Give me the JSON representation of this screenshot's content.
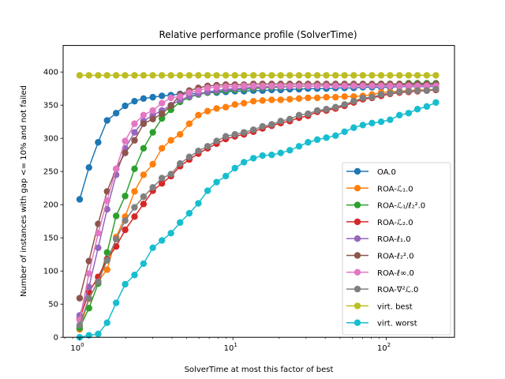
{
  "chart_data": {
    "type": "line",
    "title": "Relative performance profile (SolverTime)",
    "xlabel": "SolverTime at most this factor of best",
    "ylabel": "Number of instances with gap <= 10% and not failed",
    "xscale": "log",
    "xlim": [
      0.78,
      279
    ],
    "ylim": [
      0,
      440
    ],
    "grid": false,
    "legend_position": "lower-right",
    "xticks": [
      {
        "value": 1,
        "base": "10",
        "exp": "0"
      },
      {
        "value": 10,
        "base": "10",
        "exp": "1"
      },
      {
        "value": 100,
        "base": "10",
        "exp": "2"
      }
    ],
    "yticks": [
      0,
      50,
      100,
      150,
      200,
      250,
      300,
      350,
      400
    ],
    "x": [
      1.0,
      1.15,
      1.32,
      1.51,
      1.73,
      1.98,
      2.28,
      2.61,
      3.0,
      3.44,
      3.94,
      4.52,
      5.19,
      5.95,
      6.83,
      7.83,
      8.98,
      10.3,
      11.8,
      13.6,
      15.6,
      17.9,
      20.5,
      23.5,
      27.0,
      30.9,
      35.5,
      40.7,
      46.7,
      53.5,
      61.4,
      70.4,
      80.8,
      92.7,
      106,
      122,
      140,
      160,
      184,
      211
    ],
    "series": [
      {
        "name": "OA.0",
        "color": "#1f77b4",
        "values": [
          208,
          256,
          294,
          327,
          338,
          349,
          356,
          360,
          362,
          364,
          365,
          367,
          367,
          368,
          369,
          369,
          370,
          371,
          371,
          372,
          372,
          373,
          373,
          374,
          374,
          375,
          375,
          375,
          376,
          376,
          376,
          377,
          377,
          377,
          377,
          378,
          378,
          378,
          378,
          378
        ]
      },
      {
        "name": "ROA-ℒ₁.0",
        "color": "#ff7f0e",
        "values": [
          12,
          58,
          85,
          102,
          151,
          182,
          220,
          245,
          261,
          285,
          297,
          306,
          322,
          335,
          341,
          345,
          347,
          351,
          353,
          356,
          357,
          358,
          358,
          359,
          360,
          361,
          361,
          362,
          362,
          363,
          363,
          364,
          366,
          369,
          370,
          371,
          372,
          373,
          373,
          374
        ]
      },
      {
        "name": "ROA-ℒ₁/ℓ₂².0",
        "color": "#2ca02c",
        "values": [
          14,
          44,
          81,
          128,
          183,
          213,
          254,
          285,
          309,
          330,
          343,
          355,
          362,
          366,
          369,
          370,
          372,
          373,
          374,
          375,
          376,
          377,
          377,
          378,
          378,
          379,
          379,
          380,
          380,
          380,
          381,
          381,
          381,
          382,
          382,
          382,
          383,
          383,
          383,
          383
        ]
      },
      {
        "name": "ROA-ℒ₂.0",
        "color": "#d62728",
        "values": [
          28,
          68,
          91,
          118,
          137,
          162,
          182,
          201,
          221,
          232,
          243,
          258,
          268,
          277,
          285,
          292,
          299,
          303,
          306,
          310,
          315,
          319,
          323,
          326,
          331,
          334,
          340,
          342,
          345,
          349,
          354,
          359,
          361,
          364,
          367,
          369,
          370,
          371,
          372,
          373
        ]
      },
      {
        "name": "ROA-ℓ₁.0",
        "color": "#9467bd",
        "values": [
          33,
          76,
          135,
          193,
          245,
          285,
          309,
          326,
          335,
          342,
          350,
          358,
          363,
          367,
          370,
          372,
          374,
          375,
          376,
          377,
          377,
          378,
          378,
          378,
          379,
          379,
          379,
          379,
          380,
          380,
          380,
          380,
          380,
          380,
          380,
          380,
          380,
          380,
          380,
          380
        ]
      },
      {
        "name": "ROA-ℓ₂².0",
        "color": "#8c564b",
        "values": [
          59,
          115,
          171,
          220,
          254,
          278,
          297,
          322,
          329,
          337,
          349,
          366,
          372,
          376,
          379,
          380,
          381,
          381,
          381,
          382,
          382,
          382,
          382,
          382,
          382,
          382,
          382,
          382,
          382,
          382,
          382,
          382,
          382,
          382,
          382,
          382,
          382,
          382,
          382,
          382
        ]
      },
      {
        "name": "ROA-ℓ∞.0",
        "color": "#e377c2",
        "values": [
          26,
          96,
          157,
          206,
          254,
          296,
          322,
          335,
          342,
          353,
          361,
          363,
          369,
          372,
          376,
          377,
          378,
          378,
          379,
          379,
          379,
          379,
          379,
          379,
          379,
          379,
          379,
          379,
          379,
          379,
          379,
          379,
          379,
          379,
          379,
          379,
          379,
          379,
          379,
          379
        ]
      },
      {
        "name": "ROA-∇²ℒ.0",
        "color": "#7f7f7f",
        "values": [
          18,
          59,
          84,
          116,
          148,
          176,
          196,
          212,
          226,
          240,
          246,
          262,
          272,
          281,
          288,
          296,
          303,
          306,
          309,
          313,
          318,
          321,
          326,
          329,
          335,
          337,
          342,
          344,
          347,
          351,
          356,
          361,
          362,
          366,
          368,
          370,
          371,
          372,
          372,
          374
        ]
      },
      {
        "name": "virt. best",
        "color": "#bcbd22",
        "values": [
          395,
          395,
          395,
          395,
          395,
          395,
          395,
          395,
          395,
          395,
          395,
          395,
          395,
          395,
          395,
          395,
          395,
          395,
          395,
          395,
          395,
          395,
          395,
          395,
          395,
          395,
          395,
          395,
          395,
          395,
          395,
          395,
          395,
          395,
          395,
          395,
          395,
          395,
          395,
          395
        ]
      },
      {
        "name": "virt. worst",
        "color": "#17becf",
        "values": [
          0,
          3,
          5,
          22,
          52,
          80,
          94,
          111,
          135,
          146,
          157,
          173,
          187,
          202,
          221,
          234,
          243,
          255,
          264,
          270,
          274,
          275,
          278,
          282,
          288,
          294,
          298,
          301,
          304,
          310,
          316,
          320,
          323,
          325,
          328,
          335,
          338,
          344,
          348,
          354
        ]
      }
    ]
  }
}
